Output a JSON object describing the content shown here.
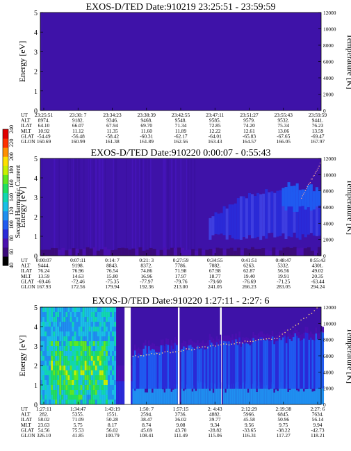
{
  "colors": {
    "background_low": "#3e12a8",
    "colormap": [
      "#000000",
      "#3b0a7a",
      "#4a10b0",
      "#2a2ad8",
      "#1f5af0",
      "#1f8ff0",
      "#19c0e6",
      "#10d8b0",
      "#20e060",
      "#60e820",
      "#c8f000",
      "#ffe000",
      "#ff9000",
      "#ff3000",
      "#e00000"
    ]
  },
  "colorbar": {
    "label": "Second Harmonic Current",
    "ticks": [
      "40",
      "60",
      "80",
      "100",
      "120",
      "140",
      "160",
      "180",
      "200",
      "220",
      "240"
    ]
  },
  "chart_data": [
    {
      "type": "heatmap",
      "title": "EXOS-D/TED   Date:910219  23:25:51 - 23:59:59",
      "ylabel": "Energy [eV]",
      "ylabel_right": "Temperature [K]",
      "ylim": [
        0,
        5
      ],
      "ylim_right": [
        0,
        12000
      ],
      "yticks": [
        "0",
        "1",
        "2",
        "3",
        "4",
        "5"
      ],
      "yticks_right": [
        "0",
        "2000",
        "4000",
        "6000",
        "8000",
        "10000",
        "12000"
      ],
      "ephemeris_labels": [
        "UT",
        "ALT",
        "ILAT",
        "MLT",
        "GLAT",
        "GLON"
      ],
      "ephemeris": [
        [
          "23:25:51",
          "8974.",
          "64.10",
          "10.92",
          "-54.49",
          "160.69"
        ],
        [
          "23:30: 7",
          "9182.",
          "66.07",
          "11.12",
          "-56.48",
          "160.99"
        ],
        [
          "23:34:23",
          "9346.",
          "67.94",
          "11.35",
          "-58.42",
          "161.38"
        ],
        [
          "23:38:39",
          "9468.",
          "69.70",
          "11.60",
          "-60.31",
          "161.89"
        ],
        [
          "23:42:55",
          "9548.",
          "71.34",
          "11.89",
          "-62.17",
          "162.56"
        ],
        [
          "23:47:11",
          "9585.",
          "72.85",
          "12.22",
          "-64.01",
          "163.43"
        ],
        [
          "23:51:27",
          "9579.",
          "74.20",
          "12.61",
          "-65.83",
          "164.57"
        ],
        [
          "23:55:43",
          "9532.",
          "75.34",
          "13.06",
          "-67.65",
          "166.05"
        ],
        [
          "23:59:59",
          "9441.",
          "76.23",
          "13.59",
          "-69.47",
          "167.97"
        ]
      ]
    },
    {
      "type": "heatmap",
      "title": "EXOS-D/TED   Date:910220   0:00:07 - 0:55:43",
      "ylabel": "Energy [eV]",
      "ylabel_right": "Temperature [K]",
      "ylim": [
        0,
        5
      ],
      "ylim_right": [
        0,
        12000
      ],
      "yticks": [
        "0",
        "1",
        "2",
        "3",
        "4",
        "5"
      ],
      "yticks_right": [
        "0",
        "2000",
        "4000",
        "6000",
        "8000",
        "10000",
        "12000"
      ],
      "ephemeris_labels": [
        "UT",
        "ALT",
        "ILAT",
        "MLT",
        "GLAT",
        "GLON"
      ],
      "ephemeris": [
        [
          "0:00:07",
          "9444.",
          "76.24",
          "13.59",
          "-69.46",
          "167.93"
        ],
        [
          "0:07:11",
          "9198.",
          "76.96",
          "14.63",
          "-72.46",
          "172.56"
        ],
        [
          "0:14: 7",
          "8843.",
          "76.54",
          "15.80",
          "-75.35",
          "179.94"
        ],
        [
          "0:21: 3",
          "8372.",
          "74.86",
          "16.96",
          "-77.97",
          "192.36"
        ],
        [
          "0:27:59",
          "7786.",
          "71.98",
          "17.97",
          "-79.76",
          "213.00"
        ],
        [
          "0:34:55",
          "7082.",
          "67.98",
          "18.77",
          "-79.60",
          "241.05"
        ],
        [
          "0:41:51",
          "6263.",
          "62.87",
          "19.40",
          "-76.69",
          "266.23"
        ],
        [
          "0:48:47",
          "5332.",
          "56.56",
          "19.91",
          "-71.25",
          "283.05"
        ],
        [
          "0:55:43",
          "4301.",
          "49.02",
          "20.35",
          "-63.44",
          "294.24"
        ]
      ]
    },
    {
      "type": "heatmap",
      "title": "EXOS-D/TED   Date:910220   1:27:11 - 2:27: 6",
      "ylabel": "Energy [eV]",
      "ylabel_right": "Temperature [K]",
      "ylim": [
        0,
        5
      ],
      "ylim_right": [
        0,
        12000
      ],
      "yticks": [
        "0",
        "1",
        "2",
        "3",
        "4",
        "5"
      ],
      "yticks_right": [
        "0",
        "2000",
        "4000",
        "6000",
        "8000",
        "10000",
        "12000"
      ],
      "ephemeris_labels": [
        "UT",
        "ALT",
        "ILAT",
        "MLT",
        "GLAT",
        "GLON"
      ],
      "ephemeris": [
        [
          "1:27:11",
          "282.",
          "58.02",
          "23.63",
          "54.56",
          "326.10"
        ],
        [
          "1:34:47",
          "5355.",
          "71.09",
          "5.75",
          "75.53",
          "41.85"
        ],
        [
          "1:43:19",
          "1551.",
          "50.28",
          "8.17",
          "56.02",
          "100.79"
        ],
        [
          "1:50: 7",
          "2594.",
          "38.47",
          "8.74",
          "45.69",
          "108.41"
        ],
        [
          "1:57:15",
          "3736.",
          "36.02",
          "9.08",
          "43.70",
          "111.49"
        ],
        [
          "2: 4:43",
          "4882.",
          "39.77",
          "9.34",
          "-28.82",
          "115.06"
        ],
        [
          "2:12:29",
          "5966.",
          "45.58",
          "9.56",
          "-33.65",
          "116.31"
        ],
        [
          "2:19:38",
          "6845.",
          "50.96",
          "9.75",
          "-38.22",
          "117.27"
        ],
        [
          "2:27: 6",
          "7634.",
          "56.14",
          "9.94",
          "-42.73",
          "118.21"
        ]
      ]
    }
  ]
}
